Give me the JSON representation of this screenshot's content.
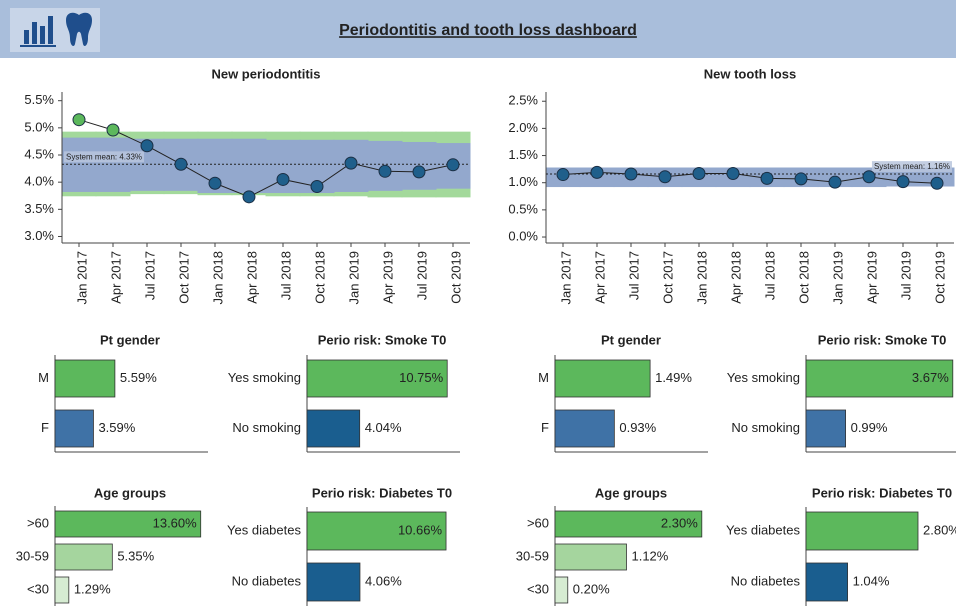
{
  "header": {
    "title": "Periodontitis and tooth loss dashboard"
  },
  "chart_data": [
    {
      "type": "line",
      "title": "New periodontitis",
      "categories": [
        "Jan 2017",
        "Apr 2017",
        "Jul 2017",
        "Oct 2017",
        "Jan 2018",
        "Apr 2018",
        "Jul 2018",
        "Oct 2018",
        "Jan 2019",
        "Apr 2019",
        "Jul 2019",
        "Oct 2019"
      ],
      "values": [
        5.15,
        4.96,
        4.67,
        4.33,
        3.98,
        3.73,
        4.05,
        3.92,
        4.35,
        4.2,
        4.19,
        4.32
      ],
      "point_colors": [
        "#5cb85c",
        "#5cb85c",
        "#1f5f8b",
        "#1f5f8b",
        "#1f5f8b",
        "#1f5f8b",
        "#1f5f8b",
        "#1f5f8b",
        "#1f5f8b",
        "#1f5f8b",
        "#1f5f8b",
        "#1f5f8b"
      ],
      "line_color": "#222222",
      "ylim": [
        2.88,
        5.66
      ],
      "yticks": [
        {
          "value": 3,
          "label": "3.0%"
        },
        {
          "value": 3.5,
          "label": "3.5%"
        },
        {
          "value": 4,
          "label": "4.0%"
        },
        {
          "value": 4.5,
          "label": "4.5%"
        },
        {
          "value": 5,
          "label": "5.0%"
        },
        {
          "value": 5.5,
          "label": "5.5%"
        }
      ],
      "mean": 4.33,
      "mean_label": "System mean: 4.33%",
      "outer_band": {
        "color": "#a3d99b",
        "lower": [
          3.74,
          3.74,
          3.78,
          3.78,
          3.76,
          3.76,
          3.74,
          3.74,
          3.74,
          3.72,
          3.72,
          3.72
        ],
        "upper": [
          4.93,
          4.93,
          4.93,
          4.93,
          4.93,
          4.93,
          4.93,
          4.93,
          4.93,
          4.93,
          4.93,
          4.93
        ]
      },
      "inner_band": {
        "color": "#93a8cd",
        "lower": [
          3.82,
          3.82,
          3.84,
          3.84,
          3.8,
          3.8,
          3.8,
          3.8,
          3.82,
          3.84,
          3.86,
          3.88
        ],
        "upper": [
          4.82,
          4.82,
          4.8,
          4.8,
          4.8,
          4.8,
          4.78,
          4.78,
          4.78,
          4.76,
          4.74,
          4.72
        ]
      }
    },
    {
      "type": "line",
      "title": "New tooth loss",
      "categories": [
        "Jan 2017",
        "Apr 2017",
        "Jul 2017",
        "Oct 2017",
        "Jan 2018",
        "Apr 2018",
        "Jul 2018",
        "Oct 2018",
        "Jan 2019",
        "Apr 2019",
        "Jul 2019",
        "Oct 2019"
      ],
      "values": [
        1.15,
        1.19,
        1.16,
        1.11,
        1.17,
        1.17,
        1.08,
        1.07,
        1.01,
        1.11,
        1.02,
        0.99
      ],
      "point_colors": [
        "#1f5f8b",
        "#1f5f8b",
        "#1f5f8b",
        "#1f5f8b",
        "#1f5f8b",
        "#1f5f8b",
        "#1f5f8b",
        "#1f5f8b",
        "#1f5f8b",
        "#1f5f8b",
        "#1f5f8b",
        "#1f5f8b"
      ],
      "line_color": "#222222",
      "ylim": [
        -0.11,
        2.67
      ],
      "yticks": [
        {
          "value": 0,
          "label": "0.0%"
        },
        {
          "value": 0.5,
          "label": "0.5%"
        },
        {
          "value": 1,
          "label": "1.0%"
        },
        {
          "value": 1.5,
          "label": "1.5%"
        },
        {
          "value": 2,
          "label": "2.0%"
        },
        {
          "value": 2.5,
          "label": "2.5%"
        }
      ],
      "mean": 1.16,
      "mean_label": "System mean: 1.16%",
      "inner_band": {
        "color": "#93a8cd",
        "lower": [
          0.92,
          0.92,
          0.92,
          0.92,
          0.92,
          0.92,
          0.92,
          0.92,
          0.92,
          0.92,
          0.93,
          0.93
        ],
        "upper": [
          1.28,
          1.28,
          1.28,
          1.28,
          1.28,
          1.28,
          1.28,
          1.28,
          1.28,
          1.28,
          1.28,
          1.28
        ]
      }
    },
    {
      "type": "hbar",
      "title": "Pt gender",
      "categories": [
        "M",
        "F"
      ],
      "values": [
        5.59,
        3.59
      ],
      "value_labels": [
        "5.59%",
        "3.59%"
      ],
      "colors": [
        "#5cb85c",
        "#3f72a6"
      ],
      "xlim": [
        0,
        14
      ]
    },
    {
      "type": "hbar",
      "title": "Perio risk: Smoke T0",
      "categories": [
        "Yes smoking",
        "No smoking"
      ],
      "values": [
        10.75,
        4.04
      ],
      "value_labels": [
        "10.75%",
        "4.04%"
      ],
      "colors": [
        "#5cb85c",
        "#1a5e8f"
      ],
      "xlim": [
        0,
        11.5
      ]
    },
    {
      "type": "hbar",
      "title": "Age groups",
      "categories": [
        ">60",
        "30-59",
        "<30"
      ],
      "values": [
        13.6,
        5.35,
        1.29
      ],
      "value_labels": [
        "13.60%",
        "5.35%",
        "1.29%"
      ],
      "colors": [
        "#5cb85c",
        "#a5d59e",
        "#d6ecd2"
      ],
      "xlim": [
        0,
        14
      ]
    },
    {
      "type": "hbar",
      "title": "Perio risk: Diabetes T0",
      "categories": [
        "Yes diabetes",
        "No diabetes"
      ],
      "values": [
        10.66,
        4.06
      ],
      "value_labels": [
        "10.66%",
        "4.06%"
      ],
      "colors": [
        "#5cb85c",
        "#1a5e8f"
      ],
      "xlim": [
        0,
        11.5
      ]
    },
    {
      "type": "hbar",
      "title": "Pt gender",
      "categories": [
        "M",
        "F"
      ],
      "values": [
        1.49,
        0.93
      ],
      "value_labels": [
        "1.49%",
        "0.93%"
      ],
      "colors": [
        "#5cb85c",
        "#3f72a6"
      ],
      "xlim": [
        0,
        2.35
      ]
    },
    {
      "type": "hbar",
      "title": "Perio risk: Smoke T0",
      "categories": [
        "Yes smoking",
        "No smoking"
      ],
      "values": [
        3.67,
        0.99
      ],
      "value_labels": [
        "3.67%",
        "0.99%"
      ],
      "colors": [
        "#5cb85c",
        "#3f72a6"
      ],
      "xlim": [
        0,
        3.75
      ]
    },
    {
      "type": "hbar",
      "title": "Age groups",
      "categories": [
        ">60",
        "30-59",
        "<30"
      ],
      "values": [
        2.3,
        1.12,
        0.2
      ],
      "value_labels": [
        "2.30%",
        "1.12%",
        "0.20%"
      ],
      "colors": [
        "#5cb85c",
        "#a5d59e",
        "#d6ecd2"
      ],
      "xlim": [
        0,
        2.35
      ]
    },
    {
      "type": "hbar",
      "title": "Perio risk: Diabetes T0",
      "categories": [
        "Yes diabetes",
        "No diabetes"
      ],
      "values": [
        2.8,
        1.04
      ],
      "value_labels": [
        "2.80%",
        "1.04%"
      ],
      "colors": [
        "#5cb85c",
        "#1a5e8f"
      ],
      "xlim": [
        0,
        3.75
      ]
    }
  ]
}
